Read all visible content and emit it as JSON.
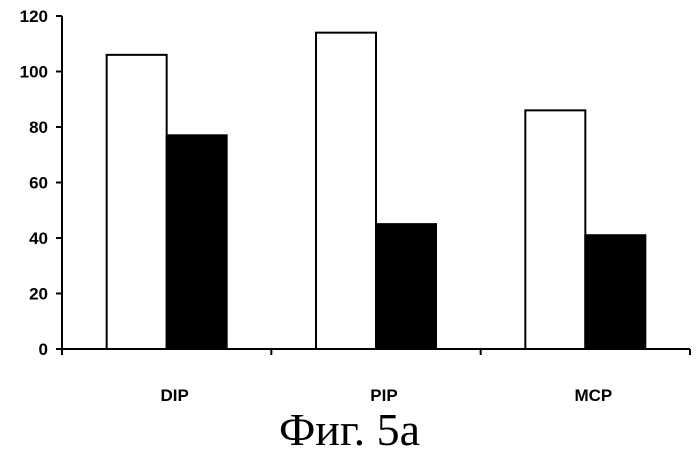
{
  "caption": "Фиг. 5а",
  "chart_data": {
    "type": "bar",
    "categories": [
      "DIP",
      "PIP",
      "MCP"
    ],
    "series": [
      {
        "values": [
          106,
          114,
          86
        ],
        "color": "#ffffff"
      },
      {
        "values": [
          77,
          45,
          41
        ],
        "color": "#000000"
      }
    ],
    "yticks": [
      0,
      20,
      40,
      60,
      80,
      100,
      120
    ],
    "ylim": [
      0,
      120
    ],
    "grid": false,
    "legend": "none"
  }
}
